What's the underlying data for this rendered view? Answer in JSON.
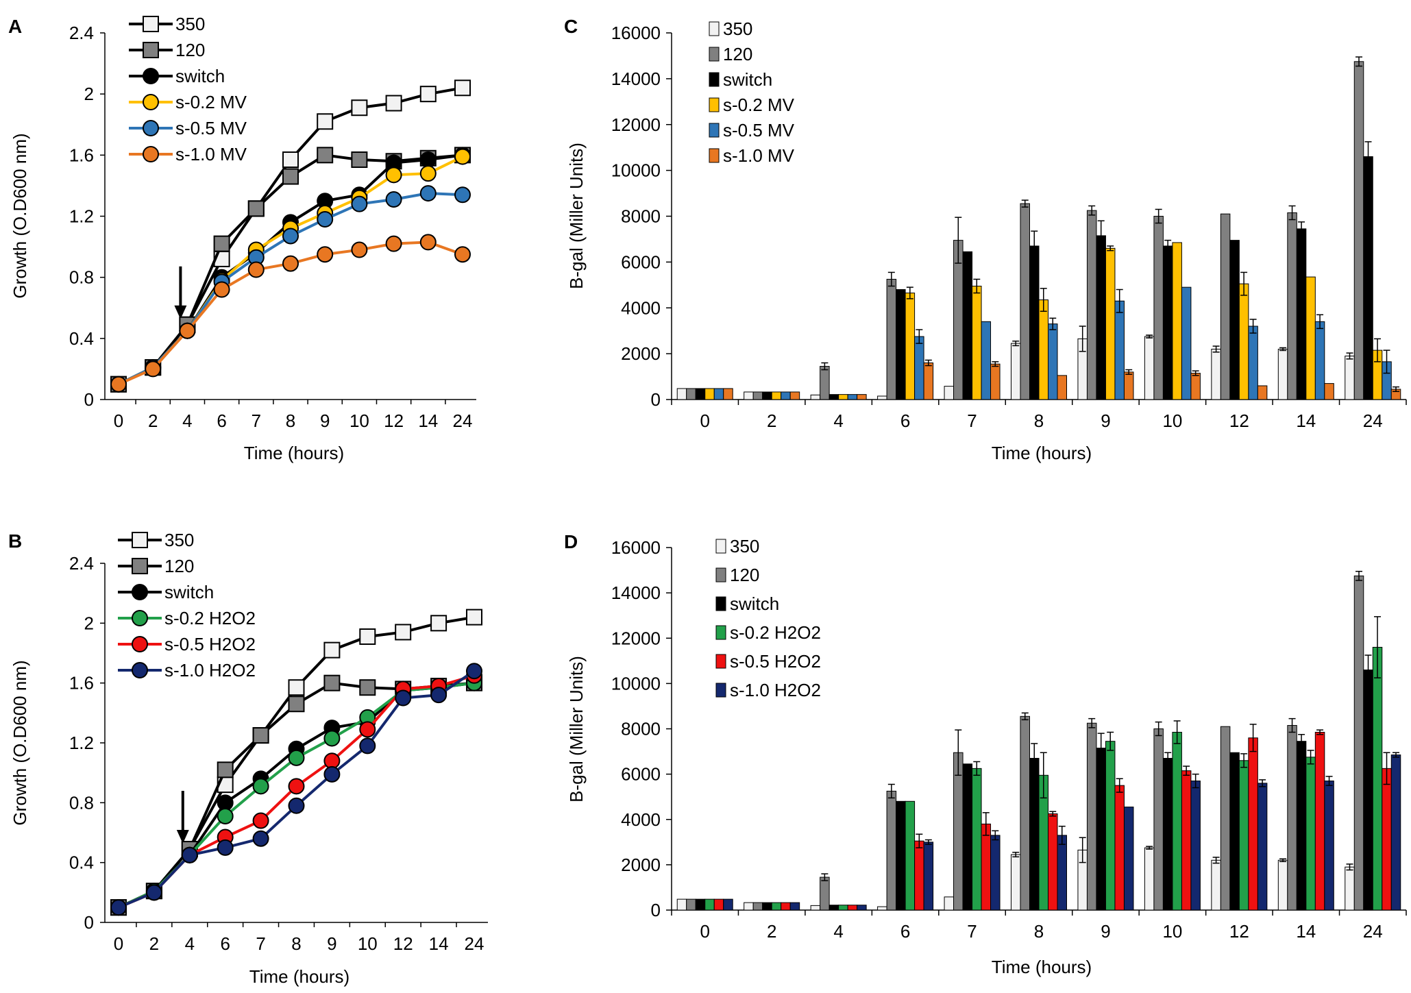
{
  "colors": {
    "c350": "#f2f2f2",
    "c120": "#808080",
    "switch": "#000000",
    "mv02": "#ffc000",
    "mv05": "#2e75b6",
    "mv10": "#e87722",
    "h02": "#22a04a",
    "h05": "#ee1111",
    "h10": "#14286e"
  },
  "chart_data": [
    {
      "panel_label": "A",
      "type": "line",
      "categories": [
        "0",
        "2",
        "4",
        "6",
        "7",
        "8",
        "9",
        "10",
        "12",
        "14",
        "24"
      ],
      "xlabel": "Time (hours)",
      "ylabel": "Growth (O.D600 nm)",
      "ylim": [
        0,
        2.4
      ],
      "yticks": [
        "0",
        "0.4",
        "0.8",
        "1.2",
        "1.6",
        "2",
        "2.4"
      ],
      "arrow_at_category": "4",
      "series": [
        {
          "name": "350",
          "values": [
            0.1,
            0.21,
            0.49,
            0.92,
            1.25,
            1.57,
            1.82,
            1.91,
            1.94,
            2.0,
            2.04
          ],
          "marker": "square-open",
          "color": "#000000",
          "fill": "#f2f2f2"
        },
        {
          "name": "120",
          "values": [
            0.1,
            0.21,
            0.49,
            1.02,
            1.25,
            1.46,
            1.6,
            1.57,
            1.56,
            1.58,
            1.6
          ],
          "marker": "square",
          "color": "#000000",
          "fill": "#808080"
        },
        {
          "name": "switch",
          "values": [
            0.1,
            0.21,
            0.45,
            0.8,
            0.96,
            1.16,
            1.3,
            1.34,
            1.55,
            1.57,
            1.6
          ],
          "marker": "circle",
          "color": "#000000",
          "fill": "#000000"
        },
        {
          "name": "s-0.2 MV",
          "values": [
            0.1,
            0.21,
            0.45,
            0.78,
            0.98,
            1.12,
            1.22,
            1.32,
            1.47,
            1.48,
            1.59
          ],
          "marker": "circle",
          "color": "#ffc000",
          "fill": "#ffc000"
        },
        {
          "name": "s-0.5 MV",
          "values": [
            0.1,
            0.21,
            0.45,
            0.77,
            0.93,
            1.07,
            1.18,
            1.28,
            1.31,
            1.35,
            1.34
          ],
          "marker": "circle",
          "color": "#2e75b6",
          "fill": "#2e75b6"
        },
        {
          "name": "s-1.0 MV",
          "values": [
            0.1,
            0.2,
            0.45,
            0.72,
            0.85,
            0.89,
            0.95,
            0.98,
            1.02,
            1.03,
            0.95
          ],
          "marker": "circle",
          "color": "#e87722",
          "fill": "#e87722"
        }
      ]
    },
    {
      "panel_label": "B",
      "type": "line",
      "categories": [
        "0",
        "2",
        "4",
        "6",
        "7",
        "8",
        "9",
        "10",
        "12",
        "14",
        "24"
      ],
      "xlabel": "Time (hours)",
      "ylabel": "Growth (O.D600 nm)",
      "ylim": [
        0,
        2.4
      ],
      "yticks": [
        "0",
        "0.4",
        "0.8",
        "1.2",
        "1.6",
        "2",
        "2.4"
      ],
      "arrow_at_category": "4",
      "series": [
        {
          "name": "350",
          "values": [
            0.1,
            0.21,
            0.49,
            0.92,
            1.25,
            1.57,
            1.82,
            1.91,
            1.94,
            2.0,
            2.04
          ],
          "marker": "square-open",
          "color": "#000000",
          "fill": "#f2f2f2"
        },
        {
          "name": "120",
          "values": [
            0.1,
            0.21,
            0.49,
            1.02,
            1.25,
            1.46,
            1.6,
            1.57,
            1.56,
            1.58,
            1.6
          ],
          "marker": "square",
          "color": "#000000",
          "fill": "#808080"
        },
        {
          "name": "switch",
          "values": [
            0.1,
            0.21,
            0.45,
            0.8,
            0.96,
            1.16,
            1.3,
            1.34,
            1.55,
            1.57,
            1.6
          ],
          "marker": "circle",
          "color": "#000000",
          "fill": "#000000"
        },
        {
          "name": "s-0.2 H2O2",
          "values": [
            0.1,
            0.21,
            0.45,
            0.71,
            0.91,
            1.1,
            1.23,
            1.37,
            1.55,
            1.57,
            1.6
          ],
          "marker": "circle",
          "color": "#22a04a",
          "fill": "#22a04a"
        },
        {
          "name": "s-0.5 H2O2",
          "values": [
            0.1,
            0.2,
            0.45,
            0.57,
            0.68,
            0.91,
            1.08,
            1.29,
            1.56,
            1.58,
            1.65
          ],
          "marker": "circle",
          "color": "#ee1111",
          "fill": "#ee1111"
        },
        {
          "name": "s-1.0 H2O2",
          "values": [
            0.1,
            0.2,
            0.45,
            0.5,
            0.56,
            0.78,
            0.99,
            1.18,
            1.5,
            1.52,
            1.68
          ],
          "marker": "circle",
          "color": "#14286e",
          "fill": "#14286e"
        }
      ]
    },
    {
      "panel_label": "C",
      "type": "bar",
      "categories": [
        "0",
        "2",
        "4",
        "6",
        "7",
        "8",
        "9",
        "10",
        "12",
        "14",
        "24"
      ],
      "xlabel": "Time (hours)",
      "ylabel": "B-gal (Miller Units)",
      "ylim": [
        0,
        16000
      ],
      "yticks": [
        "0",
        "2000",
        "4000",
        "6000",
        "8000",
        "10000",
        "12000",
        "14000",
        "16000"
      ],
      "series": [
        {
          "name": "350",
          "color": "#f2f2f2",
          "values": [
            480,
            330,
            200,
            150,
            580,
            2450,
            2650,
            2750,
            2200,
            2200,
            1900
          ],
          "errors": [
            0,
            0,
            0,
            0,
            0,
            100,
            550,
            60,
            130,
            60,
            130
          ]
        },
        {
          "name": "120",
          "color": "#808080",
          "values": [
            480,
            330,
            1450,
            5250,
            6950,
            8550,
            8250,
            8000,
            8100,
            8150,
            14750
          ],
          "errors": [
            0,
            0,
            150,
            300,
            1000,
            150,
            200,
            300,
            0,
            300,
            200
          ]
        },
        {
          "name": "switch",
          "color": "#000000",
          "values": [
            480,
            330,
            220,
            4800,
            6450,
            6700,
            7150,
            6700,
            6950,
            7450,
            10600
          ],
          "errors": [
            0,
            0,
            0,
            0,
            0,
            650,
            650,
            250,
            0,
            300,
            650
          ]
        },
        {
          "name": "s-0.2 MV",
          "color": "#ffc000",
          "values": [
            480,
            330,
            220,
            4650,
            4950,
            4350,
            6600,
            6850,
            5050,
            5350,
            2150
          ],
          "errors": [
            0,
            0,
            0,
            250,
            300,
            500,
            100,
            0,
            500,
            0,
            500
          ]
        },
        {
          "name": "s-0.5 MV",
          "color": "#2e75b6",
          "values": [
            480,
            330,
            220,
            2750,
            3400,
            3300,
            4300,
            4900,
            3200,
            3400,
            1650
          ],
          "errors": [
            0,
            0,
            0,
            300,
            0,
            250,
            500,
            0,
            300,
            300,
            500
          ]
        },
        {
          "name": "s-1.0 MV",
          "color": "#e87722",
          "values": [
            480,
            330,
            220,
            1600,
            1550,
            1050,
            1200,
            1150,
            600,
            700,
            450
          ],
          "errors": [
            0,
            0,
            0,
            120,
            100,
            0,
            100,
            100,
            0,
            0,
            100
          ]
        }
      ]
    },
    {
      "panel_label": "D",
      "type": "bar",
      "categories": [
        "0",
        "2",
        "4",
        "6",
        "7",
        "8",
        "9",
        "10",
        "12",
        "14",
        "24"
      ],
      "xlabel": "Time (hours)",
      "ylabel": "B-gal (Miller Units)",
      "ylim": [
        0,
        16000
      ],
      "yticks": [
        "0",
        "2000",
        "4000",
        "6000",
        "8000",
        "10000",
        "12000",
        "14000",
        "16000"
      ],
      "series": [
        {
          "name": "350",
          "color": "#f2f2f2",
          "values": [
            480,
            330,
            200,
            150,
            580,
            2450,
            2650,
            2750,
            2200,
            2200,
            1900
          ],
          "errors": [
            0,
            0,
            0,
            0,
            0,
            100,
            550,
            60,
            130,
            60,
            130
          ]
        },
        {
          "name": "120",
          "color": "#808080",
          "values": [
            480,
            330,
            1450,
            5250,
            6950,
            8550,
            8250,
            8000,
            8100,
            8150,
            14750
          ],
          "errors": [
            0,
            0,
            150,
            300,
            1000,
            150,
            200,
            300,
            0,
            300,
            200
          ]
        },
        {
          "name": "switch",
          "color": "#000000",
          "values": [
            480,
            330,
            220,
            4800,
            6450,
            6700,
            7150,
            6700,
            6950,
            7450,
            10600
          ],
          "errors": [
            0,
            0,
            0,
            0,
            0,
            650,
            650,
            250,
            0,
            300,
            650
          ]
        },
        {
          "name": "s-0.2 H2O2",
          "color": "#22a04a",
          "values": [
            480,
            330,
            220,
            4800,
            6250,
            5950,
            7450,
            7850,
            6600,
            6750,
            11600
          ],
          "errors": [
            0,
            0,
            0,
            0,
            300,
            1000,
            400,
            500,
            300,
            300,
            1350
          ]
        },
        {
          "name": "s-0.5 H2O2",
          "color": "#ee1111",
          "values": [
            480,
            330,
            220,
            3050,
            3800,
            4250,
            5500,
            6150,
            7600,
            7850,
            6250
          ],
          "errors": [
            0,
            0,
            0,
            300,
            500,
            100,
            300,
            200,
            600,
            100,
            700
          ]
        },
        {
          "name": "s-1.0 H2O2",
          "color": "#14286e",
          "values": [
            480,
            330,
            220,
            3000,
            3300,
            3300,
            4550,
            5700,
            5600,
            5700,
            6850
          ],
          "errors": [
            0,
            0,
            0,
            100,
            200,
            400,
            0,
            300,
            150,
            200,
            100
          ]
        }
      ]
    }
  ]
}
